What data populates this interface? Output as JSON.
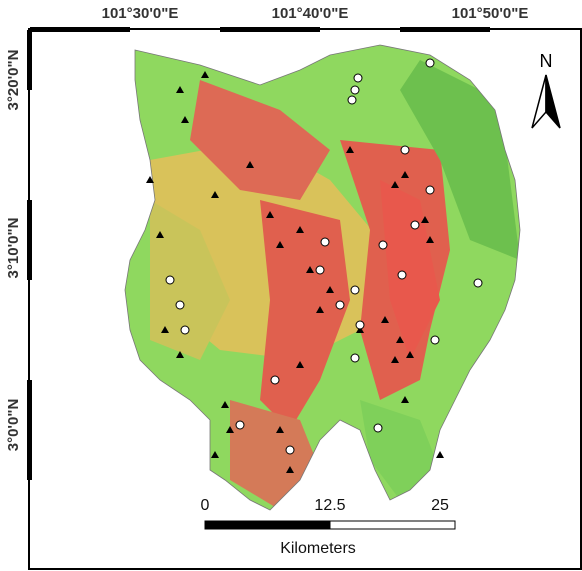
{
  "longitude_labels": [
    "101°30'0\"E",
    "101°40'0\"E",
    "101°50'0\"E"
  ],
  "latitude_labels": [
    "3°20'0\"N",
    "3°10'0\"N",
    "3°0'0\"N"
  ],
  "north_arrow": {
    "label": "N"
  },
  "scale_bar": {
    "labels": [
      "0",
      "12.5",
      "25"
    ],
    "unit": "Kilometers"
  }
}
